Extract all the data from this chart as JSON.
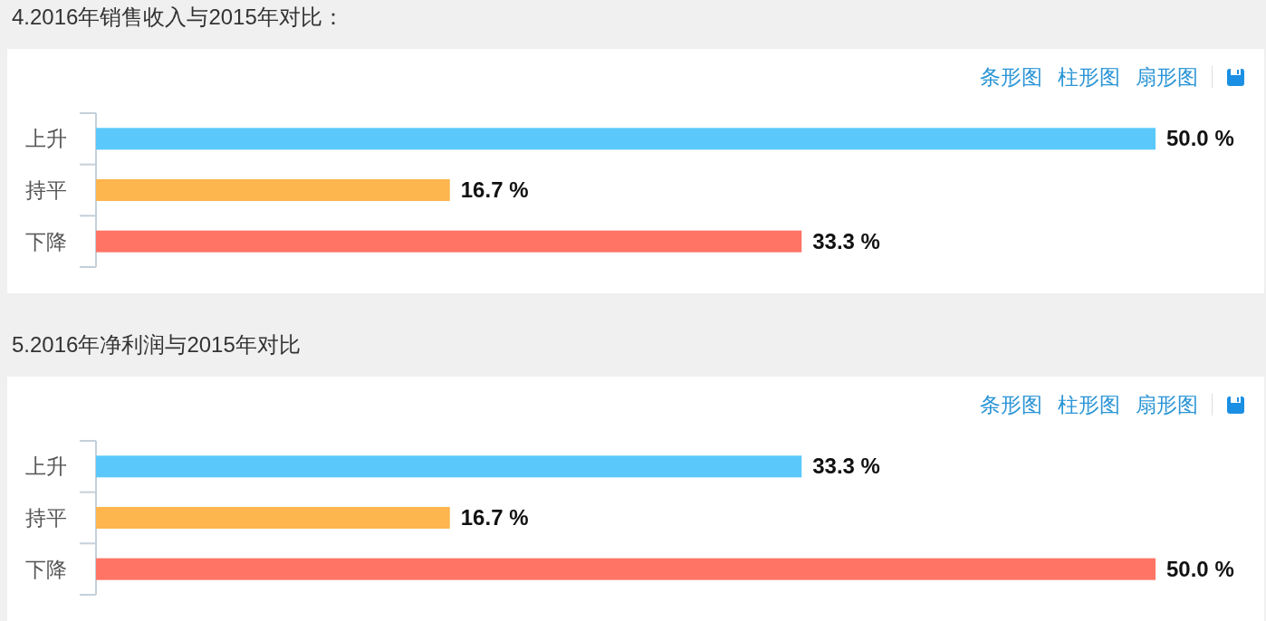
{
  "chart_data": [
    {
      "type": "bar",
      "orientation": "horizontal",
      "title": "4.2016年销售收入与2015年对比：",
      "categories": [
        "上升",
        "持平",
        "下降"
      ],
      "values": [
        50.0,
        16.7,
        33.3
      ],
      "colors": [
        "#5ac8fa",
        "#fdb54e",
        "#ff7465"
      ],
      "value_labels": [
        "50.0 %",
        "16.7 %",
        "33.3 %"
      ],
      "xlim": [
        0,
        50
      ],
      "tick_labels": "y",
      "annotations": [
        "条形图",
        "柱形图",
        "扇形图"
      ]
    },
    {
      "type": "bar",
      "orientation": "horizontal",
      "title": "5.2016年净利润与2015年对比",
      "categories": [
        "上升",
        "持平",
        "下降"
      ],
      "values": [
        33.3,
        16.7,
        50.0
      ],
      "colors": [
        "#5ac8fa",
        "#fdb54e",
        "#ff7465"
      ],
      "value_labels": [
        "33.3 %",
        "16.7 %",
        "50.0 %"
      ],
      "xlim": [
        0,
        50
      ],
      "tick_labels": "y",
      "annotations": [
        "条形图",
        "柱形图",
        "扇形图"
      ]
    }
  ]
}
